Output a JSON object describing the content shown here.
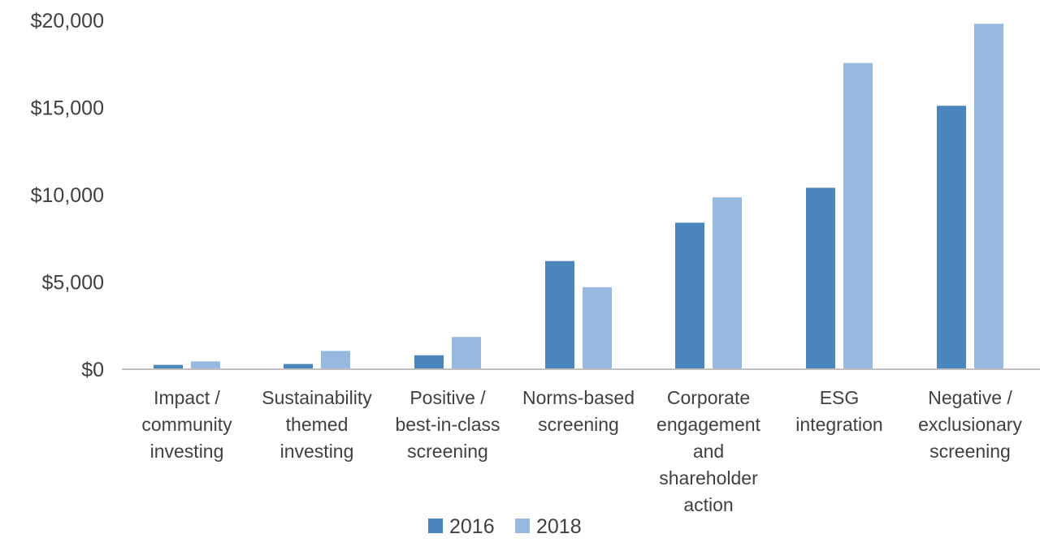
{
  "chart_data": {
    "type": "bar",
    "title": "",
    "xlabel": "",
    "ylabel": "",
    "categories": [
      [
        "Impact /",
        "community",
        "investing"
      ],
      [
        "Sustainability",
        "themed",
        "investing"
      ],
      [
        "Positive /",
        "best-in-class",
        "screening"
      ],
      [
        "Norms-based",
        "screening"
      ],
      [
        "Corporate",
        "engagement",
        "and",
        "shareholder",
        "action"
      ],
      [
        "ESG",
        "integration"
      ],
      [
        "Negative /",
        "exclusionary",
        "screening"
      ]
    ],
    "series": [
      {
        "name": "2016",
        "color": "#4a86bb",
        "values": [
          250,
          300,
          800,
          6200,
          8400,
          10400,
          15100
        ]
      },
      {
        "name": "2018",
        "color": "#98b9df",
        "values": [
          450,
          1050,
          1850,
          4700,
          9850,
          17550,
          19800
        ]
      }
    ],
    "ylim": [
      0,
      20000
    ],
    "yticks": [
      0,
      5000,
      10000,
      15000,
      20000
    ],
    "ytick_labels": [
      "$0",
      "$5,000",
      "$10,000",
      "$15,000",
      "$20,000"
    ],
    "grid": false,
    "legend_position": "bottom"
  }
}
